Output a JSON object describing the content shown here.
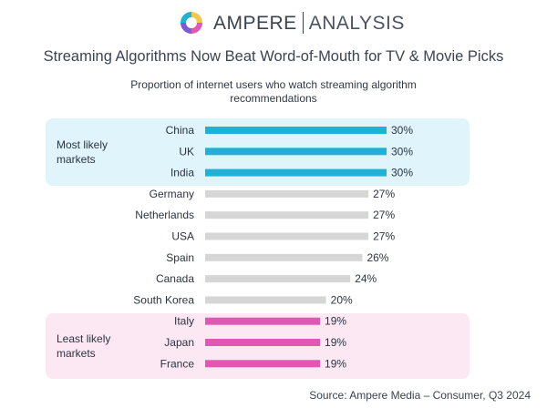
{
  "brand": {
    "name_primary": "AMPERE",
    "name_secondary": "ANALYSIS"
  },
  "title": "Streaming Algorithms Now Beat Word-of-Mouth for TV & Movie Picks",
  "subtitle_lines": [
    "Proportion of internet users who watch streaming algorithm",
    "recommendations"
  ],
  "groups": {
    "top": {
      "label_lines": [
        "Most likely",
        "markets"
      ]
    },
    "bottom": {
      "label_lines": [
        "Least likely",
        "markets"
      ]
    }
  },
  "source": "Source: Ampere Media – Consumer, Q3 2024",
  "colors": {
    "top": "#1fb2d6",
    "middle": "#d6d6d6",
    "bottom": "#e058b4",
    "top_band": "#dff4fb",
    "bottom_band": "#fbe8f3"
  },
  "chart_data": {
    "type": "bar",
    "orientation": "horizontal",
    "categories": [
      "China",
      "UK",
      "India",
      "Germany",
      "Netherlands",
      "USA",
      "Spain",
      "Canada",
      "South Korea",
      "Italy",
      "Japan",
      "France"
    ],
    "values": [
      30,
      30,
      30,
      27,
      27,
      27,
      26,
      24,
      20,
      19,
      19,
      19
    ],
    "data_labels": [
      "30%",
      "30%",
      "30%",
      "27%",
      "27%",
      "27%",
      "26%",
      "24%",
      "20%",
      "19%",
      "19%",
      "19%"
    ],
    "groups": [
      "top",
      "top",
      "top",
      "middle",
      "middle",
      "middle",
      "middle",
      "middle",
      "middle",
      "bottom",
      "bottom",
      "bottom"
    ],
    "unit": "%",
    "xlim": [
      0,
      30
    ]
  }
}
